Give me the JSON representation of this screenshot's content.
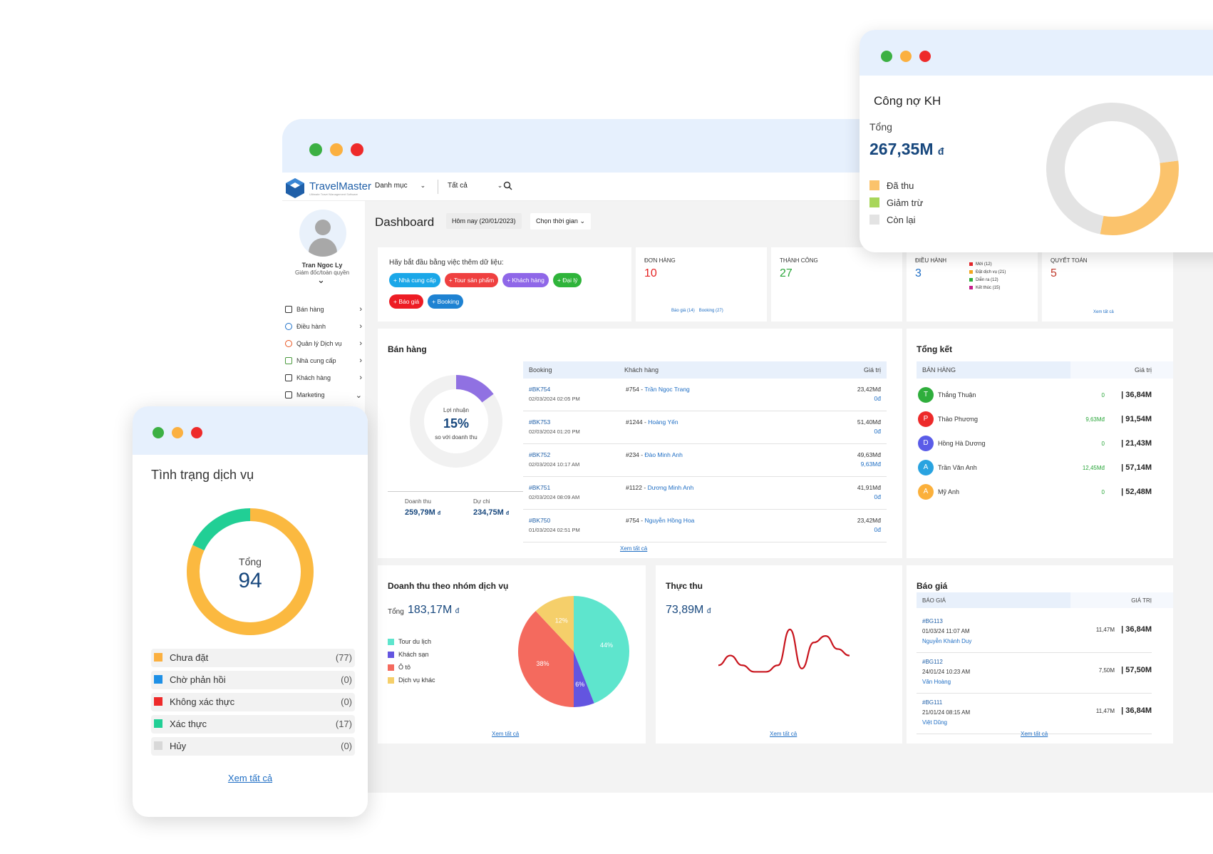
{
  "main": {
    "logo": "TravelMaster",
    "logo_tagline": "Ultimate Travel Management Software",
    "menu_dropdown": "Danh mục",
    "filter_dropdown": "Tất cả",
    "user_name": "Tran Ngoc Ly",
    "user_role": "Giám đốc/toàn quyền",
    "sidebar": [
      {
        "label": "Bán hàng",
        "icon": "briefcase-icon",
        "color": "#333"
      },
      {
        "label": "Điều hành",
        "icon": "globe-icon",
        "color": "#1e70c8"
      },
      {
        "label": "Quản lý Dịch vụ",
        "icon": "service-icon",
        "color": "#e8541f"
      },
      {
        "label": "Nhà cung cấp",
        "icon": "supplier-icon",
        "color": "#4b9a3e"
      },
      {
        "label": "Khách hàng",
        "icon": "customers-icon",
        "color": "#333"
      },
      {
        "label": "Marketing",
        "icon": "mail-icon",
        "color": "#333"
      }
    ],
    "page_title": "Dashboard",
    "today_label": "Hôm nay (20/01/2023)",
    "time_select": "Chọn thời gian",
    "quick_add": {
      "prompt": "Hãy bắt đầu bằng việc thêm dữ liệu:",
      "buttons": [
        {
          "label": "+ Nhà cung cấp",
          "color": "#1aa7e8"
        },
        {
          "label": "+ Tour sản phẩm",
          "color": "#ef4040"
        },
        {
          "label": "+ Khách hàng",
          "color": "#8f67e8"
        },
        {
          "label": "+ Đại lý",
          "color": "#2fb43a"
        },
        {
          "label": "+ Báo giá",
          "color": "#ed1c24"
        },
        {
          "label": "+ Booking",
          "color": "#1e82d2"
        }
      ]
    },
    "stats": {
      "don_hang": {
        "label": "ĐƠN HÀNG",
        "value": "10",
        "link1": "Báo giá (14)",
        "link2": "Booking (27)"
      },
      "thanh_cong": {
        "label": "THÀNH CÔNG",
        "value": "27"
      },
      "dieu_hanh": {
        "label": "ĐIỀU HÀNH",
        "value": "3",
        "legend": [
          {
            "label": "Mới (12)",
            "color": "#e8262b"
          },
          {
            "label": "Đặt dịch vụ (21)",
            "color": "#f3a61e"
          },
          {
            "label": "Diễn ra (12)",
            "color": "#2fae3c"
          },
          {
            "label": "Kết thúc (15)",
            "color": "#c51f8a"
          }
        ]
      },
      "quyet_toan": {
        "label": "QUYẾT TOÁN",
        "value": "5",
        "link": "Xem tất cả"
      }
    },
    "ban_hang": {
      "title": "Bán hàng",
      "profit_label": "Lợi nhuận",
      "profit_pct": "15%",
      "profit_sub": "so với doanh thu",
      "profit_fraction": 0.15,
      "doanh_thu_label": "Doanh thu",
      "doanh_thu_value": "259,79M",
      "du_chi_label": "Dự chi",
      "du_chi_value": "234,75M",
      "currency": "đ",
      "col_booking": "Booking",
      "col_customer": "Khách hàng",
      "col_value": "Giá trị",
      "rows": [
        {
          "code": "#BK754",
          "date": "02/03/2024 02:05 PM",
          "cust_id": "#754 - ",
          "cust_name": "Trần Ngọc Trang",
          "v1": "23,42Mđ",
          "v2": "0đ"
        },
        {
          "code": "#BK753",
          "date": "02/03/2024 01:20 PM",
          "cust_id": "#1244 - ",
          "cust_name": "Hoàng Yến",
          "v1": "51,40Mđ",
          "v2": "0đ"
        },
        {
          "code": "#BK752",
          "date": "02/03/2024 10:17 AM",
          "cust_id": "#234 - ",
          "cust_name": "Đào Minh Anh",
          "v1": "49,63Mđ",
          "v2": "9,63Mđ"
        },
        {
          "code": "#BK751",
          "date": "02/03/2024 08:09 AM",
          "cust_id": "#1122 - ",
          "cust_name": "Dương Minh Anh",
          "v1": "41,91Mđ",
          "v2": "0đ"
        },
        {
          "code": "#BK750",
          "date": "01/03/2024 02:51 PM",
          "cust_id": "#754 - ",
          "cust_name": "Nguyễn Hồng Hoa",
          "v1": "23,42Mđ",
          "v2": "0đ"
        }
      ],
      "see_all": "Xem tất cả"
    },
    "tong_ket": {
      "title": "Tổng kết",
      "col1": "BÁN HÀNG",
      "col2": "Giá trị",
      "rows": [
        {
          "initial": "T",
          "name": "Thắng Thuận",
          "color": "#2fae3c",
          "small": "0",
          "value": "| 36,84M"
        },
        {
          "initial": "P",
          "name": "Thảo Phương",
          "color": "#ed2a2a",
          "small": "9,63Mđ",
          "value": "| 91,54M"
        },
        {
          "initial": "D",
          "name": "Hồng Hà Dương",
          "color": "#5a5ce8",
          "small": "0",
          "value": "| 21,43M"
        },
        {
          "initial": "A",
          "name": "Trần Văn Anh",
          "color": "#29a3e0",
          "small": "12,45Mđ",
          "value": "| 57,14M"
        },
        {
          "initial": "A",
          "name": "Mỹ Anh",
          "color": "#fbb03b",
          "small": "0",
          "value": "| 52,48M"
        }
      ]
    },
    "doanh_thu_nhom": {
      "title": "Doanh thu theo nhóm dịch vụ",
      "total_label": "Tổng",
      "total_value": "183,17M",
      "currency": "đ",
      "see_all": "Xem tất cả"
    },
    "thuc_thu": {
      "title": "Thực thu",
      "value": "73,89M",
      "currency": "đ",
      "see_all": "Xem tất cả"
    },
    "bao_gia": {
      "title": "Báo giá",
      "col1": "BÁO GIÁ",
      "col2": "GIÁ TRỊ",
      "rows": [
        {
          "code": "#BG113",
          "date": "01/03/24 11:07 AM",
          "cust": "Nguyễn Khánh Duy",
          "small": "11,47M",
          "value": "| 36,84M"
        },
        {
          "code": "#BG112",
          "date": "24/01/24 10:23 AM",
          "cust": "Văn Hoàng",
          "small": "7,50M",
          "value": "| 57,50M"
        },
        {
          "code": "#BG111",
          "date": "21/01/24 08:15 AM",
          "cust": "Việt Dũng",
          "small": "11,47M",
          "value": "| 36,84M"
        }
      ],
      "see_all": "Xem tất cả"
    }
  },
  "cong_no": {
    "title": "Công nợ KH",
    "total_label": "Tổng",
    "total_value": "267,35M",
    "currency": "đ",
    "legend": [
      {
        "label": "Đã thu",
        "color": "#fbc36c"
      },
      {
        "label": "Giảm trừ",
        "color": "#a8d65a"
      },
      {
        "label": "Còn lại",
        "color": "#e3e3e3"
      }
    ]
  },
  "tinh_trang": {
    "title": "Tình trạng dịch vụ",
    "total_label": "Tổng",
    "total_value": "94",
    "items": [
      {
        "label": "Chưa đặt",
        "count": "(77)",
        "color": "#fbb040"
      },
      {
        "label": "Chờ phản hồi",
        "count": "(0)",
        "color": "#1e90e6"
      },
      {
        "label": "Không xác thực",
        "count": "(0)",
        "color": "#ee2a2a"
      },
      {
        "label": "Xác thực",
        "count": "(17)",
        "color": "#21cf95"
      },
      {
        "label": "Hủy",
        "count": "(0)",
        "color": "#d8d8d8"
      }
    ],
    "see_all": "Xem tất cả"
  },
  "chart_data": [
    {
      "type": "pie",
      "categories": [
        "Tour du lịch",
        "Khách sạn",
        "Ô tô",
        "Dịch vụ khác"
      ],
      "values": [
        44,
        6,
        38,
        12
      ],
      "colors": [
        "#5ee5cd",
        "#6355e0",
        "#f46a5e",
        "#f5cf6a"
      ]
    },
    {
      "type": "pie",
      "categories": [
        "Chưa đặt",
        "Chờ phản hồi",
        "Không xác thực",
        "Xác thực",
        "Hủy"
      ],
      "values": [
        77,
        0,
        0,
        17,
        0
      ],
      "colors": [
        "#fbb940",
        "#1e90e6",
        "#ee2a2a",
        "#21cf95",
        "#d8d8d8"
      ]
    },
    {
      "type": "pie",
      "categories": [
        "Đã thu",
        "Giảm trừ",
        "Còn lại"
      ],
      "values": [
        30,
        0,
        70
      ],
      "colors": [
        "#fbc36c",
        "#a8d65a",
        "#e3e3e3"
      ]
    },
    {
      "type": "line",
      "x": [
        1,
        2,
        3,
        4,
        5,
        6,
        7,
        8,
        9,
        10,
        11,
        12
      ],
      "y": [
        3,
        6,
        3,
        1,
        1,
        3,
        14,
        2,
        10,
        12,
        8,
        6
      ]
    }
  ]
}
